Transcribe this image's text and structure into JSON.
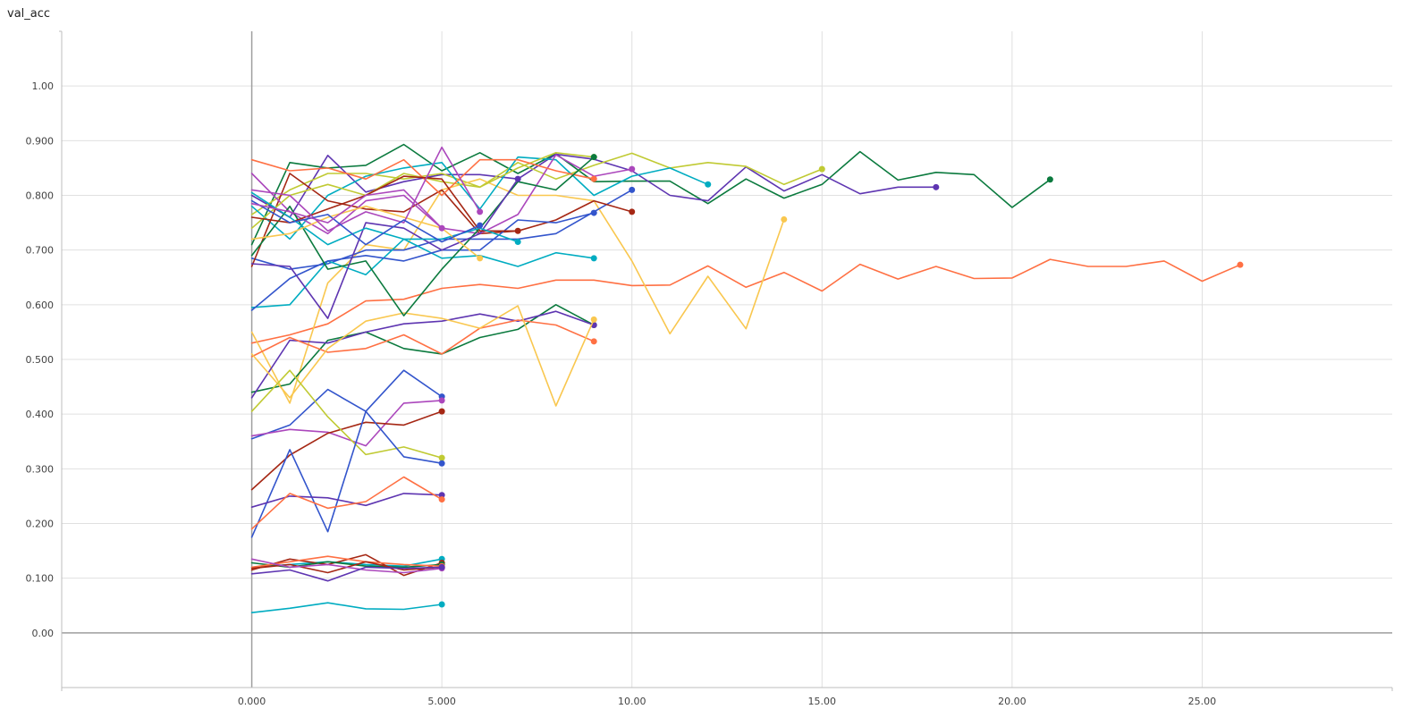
{
  "chart_data": {
    "type": "line",
    "title": "val_acc",
    "xlim": [
      -5,
      30
    ],
    "ylim": [
      -0.1,
      1.1
    ],
    "x_ticks": [
      0,
      5,
      10,
      15,
      20,
      25
    ],
    "x_tick_labels": [
      "0.000",
      "5.000",
      "10.00",
      "15.00",
      "20.00",
      "25.00"
    ],
    "y_ticks": [
      0,
      0.1,
      0.2,
      0.3,
      0.4,
      0.5,
      0.6,
      0.7,
      0.8,
      0.9,
      1.0
    ],
    "y_tick_labels": [
      "0.00",
      "0.100",
      "0.200",
      "0.300",
      "0.400",
      "0.500",
      "0.600",
      "0.700",
      "0.800",
      "0.900",
      "1.00"
    ],
    "grid": true,
    "legend": "none",
    "series": [
      {
        "color": "#0b7a3e",
        "x": [
          0,
          1,
          2,
          3,
          4,
          5,
          6,
          7,
          8,
          9,
          10,
          11,
          12,
          13,
          14,
          15,
          16,
          17,
          18,
          19,
          20,
          21
        ],
        "values": [
          0.71,
          0.86,
          0.85,
          0.855,
          0.893,
          0.845,
          0.878,
          0.84,
          0.876,
          0.825,
          0.826,
          0.826,
          0.785,
          0.83,
          0.795,
          0.82,
          0.88,
          0.828,
          0.842,
          0.838,
          0.778,
          0.829
        ]
      },
      {
        "color": "#5e35b1",
        "x": [
          0,
          1,
          2,
          3,
          4,
          5,
          6,
          7,
          8,
          9,
          10,
          11,
          12,
          13,
          14,
          15,
          16,
          17,
          18
        ],
        "values": [
          0.8,
          0.76,
          0.873,
          0.806,
          0.825,
          0.838,
          0.838,
          0.83,
          0.875,
          0.866,
          0.845,
          0.8,
          0.79,
          0.852,
          0.808,
          0.838,
          0.803,
          0.815,
          0.815
        ]
      },
      {
        "color": "#ff7043",
        "x": [
          0,
          1,
          2,
          3,
          4,
          5,
          6,
          7,
          8,
          9,
          10,
          11,
          12,
          13,
          14,
          15,
          16,
          17,
          18,
          19,
          20,
          21,
          22,
          23,
          24,
          25,
          26
        ],
        "values": [
          0.53,
          0.545,
          0.565,
          0.607,
          0.61,
          0.63,
          0.637,
          0.63,
          0.645,
          0.645,
          0.635,
          0.636,
          0.671,
          0.632,
          0.659,
          0.625,
          0.674,
          0.647,
          0.67,
          0.648,
          0.649,
          0.683,
          0.67,
          0.67,
          0.68,
          0.643,
          0.673
        ]
      },
      {
        "color": "#c0ca33",
        "x": [
          0,
          1,
          2,
          3,
          4,
          5,
          6,
          7,
          8,
          9,
          10,
          11,
          12,
          13,
          14,
          15
        ],
        "values": [
          0.765,
          0.81,
          0.84,
          0.84,
          0.83,
          0.84,
          0.815,
          0.86,
          0.83,
          0.855,
          0.877,
          0.85,
          0.86,
          0.853,
          0.82,
          0.848
        ]
      },
      {
        "color": "#f9c74f",
        "x": [
          0,
          1,
          2,
          3,
          4,
          5,
          6,
          7,
          8,
          9,
          10,
          11,
          12,
          13,
          14
        ],
        "values": [
          0.55,
          0.42,
          0.64,
          0.71,
          0.7,
          0.81,
          0.83,
          0.8,
          0.8,
          0.79,
          0.68,
          0.547,
          0.652,
          0.556,
          0.756
        ]
      },
      {
        "color": "#00acc1",
        "x": [
          0,
          1,
          2,
          3,
          4,
          5,
          6,
          7,
          8,
          9,
          10,
          11,
          12
        ],
        "values": [
          0.78,
          0.72,
          0.8,
          0.835,
          0.85,
          0.86,
          0.775,
          0.87,
          0.865,
          0.8,
          0.835,
          0.85,
          0.82
        ]
      },
      {
        "color": "#3355cc",
        "x": [
          0,
          1,
          2,
          3,
          4,
          5,
          6,
          7,
          8,
          9,
          10
        ],
        "values": [
          0.685,
          0.665,
          0.675,
          0.7,
          0.7,
          0.72,
          0.72,
          0.72,
          0.73,
          0.77,
          0.81
        ]
      },
      {
        "color": "#a52714",
        "x": [
          0,
          1,
          2,
          3,
          4,
          5,
          6,
          7,
          8,
          9,
          10
        ],
        "values": [
          0.67,
          0.84,
          0.79,
          0.775,
          0.77,
          0.81,
          0.73,
          0.735,
          0.755,
          0.79,
          0.77
        ]
      },
      {
        "color": "#ab47bc",
        "x": [
          0,
          1,
          2,
          3,
          4,
          5,
          6,
          7,
          8,
          9,
          10
        ],
        "values": [
          0.84,
          0.77,
          0.73,
          0.79,
          0.8,
          0.74,
          0.73,
          0.765,
          0.874,
          0.835,
          0.848
        ]
      },
      {
        "color": "#0b7a3e",
        "x": [
          0,
          1,
          2,
          3,
          4,
          5,
          6,
          7,
          8,
          9
        ],
        "values": [
          0.44,
          0.455,
          0.535,
          0.55,
          0.52,
          0.51,
          0.54,
          0.555,
          0.6,
          0.563
        ]
      },
      {
        "color": "#5e35b1",
        "x": [
          0,
          1,
          2,
          3,
          4,
          5,
          6,
          7,
          8,
          9
        ],
        "values": [
          0.43,
          0.535,
          0.53,
          0.55,
          0.565,
          0.57,
          0.583,
          0.57,
          0.588,
          0.563
        ]
      },
      {
        "color": "#ff7043",
        "x": [
          0,
          1,
          2,
          3,
          4,
          5,
          6,
          7,
          8,
          9
        ],
        "values": [
          0.505,
          0.54,
          0.513,
          0.52,
          0.545,
          0.51,
          0.557,
          0.572,
          0.563,
          0.533
        ]
      },
      {
        "color": "#f9c74f",
        "x": [
          0,
          1,
          2,
          3,
          4,
          5,
          6,
          7,
          8,
          9
        ],
        "values": [
          0.51,
          0.43,
          0.52,
          0.57,
          0.585,
          0.575,
          0.557,
          0.598,
          0.415,
          0.573
        ]
      },
      {
        "color": "#00acc1",
        "x": [
          0,
          1,
          2,
          3,
          4,
          5,
          6,
          7,
          8,
          9
        ],
        "values": [
          0.595,
          0.6,
          0.68,
          0.655,
          0.72,
          0.685,
          0.69,
          0.67,
          0.695,
          0.685
        ]
      },
      {
        "color": "#c0ca33",
        "x": [
          0,
          1,
          2,
          3,
          4,
          5,
          6,
          7,
          8,
          9
        ],
        "values": [
          0.74,
          0.8,
          0.82,
          0.8,
          0.84,
          0.825,
          0.815,
          0.85,
          0.878,
          0.87
        ]
      },
      {
        "color": "#ff7043",
        "x": [
          0,
          1,
          2,
          3,
          4,
          5,
          6,
          7,
          8,
          9
        ],
        "values": [
          0.865,
          0.845,
          0.85,
          0.83,
          0.865,
          0.8,
          0.865,
          0.865,
          0.845,
          0.83
        ]
      },
      {
        "color": "#3355cc",
        "x": [
          0,
          1,
          2,
          3,
          4,
          5,
          6,
          7,
          8,
          9
        ],
        "values": [
          0.59,
          0.648,
          0.68,
          0.69,
          0.68,
          0.7,
          0.7,
          0.755,
          0.75,
          0.768
        ]
      },
      {
        "color": "#0b7a3e",
        "x": [
          0,
          1,
          2,
          3,
          4,
          5,
          6,
          7,
          8,
          9
        ],
        "values": [
          0.69,
          0.78,
          0.665,
          0.68,
          0.58,
          0.665,
          0.74,
          0.825,
          0.81,
          0.87
        ]
      },
      {
        "color": "#5e35b1",
        "x": [
          0,
          1,
          2,
          3,
          4,
          5,
          6,
          7
        ],
        "values": [
          0.675,
          0.67,
          0.575,
          0.75,
          0.74,
          0.7,
          0.73,
          0.83
        ]
      },
      {
        "color": "#a52714",
        "x": [
          0,
          1,
          2,
          3,
          4,
          5,
          6,
          7
        ],
        "values": [
          0.76,
          0.75,
          0.775,
          0.8,
          0.835,
          0.83,
          0.735,
          0.735
        ]
      },
      {
        "color": "#00acc1",
        "x": [
          0,
          1,
          2,
          3,
          4,
          5,
          6,
          7
        ],
        "values": [
          0.805,
          0.76,
          0.71,
          0.74,
          0.72,
          0.72,
          0.74,
          0.715
        ]
      },
      {
        "color": "#f9c74f",
        "x": [
          0,
          1,
          2,
          3,
          4,
          5,
          6
        ],
        "values": [
          0.72,
          0.73,
          0.76,
          0.78,
          0.76,
          0.74,
          0.685
        ]
      },
      {
        "color": "#ab47bc",
        "x": [
          0,
          1,
          2,
          3,
          4,
          5,
          6
        ],
        "values": [
          0.81,
          0.8,
          0.735,
          0.77,
          0.75,
          0.888,
          0.77
        ]
      },
      {
        "color": "#3355cc",
        "x": [
          0,
          1,
          2,
          3,
          4,
          5,
          6
        ],
        "values": [
          0.79,
          0.75,
          0.765,
          0.71,
          0.755,
          0.715,
          0.745
        ]
      },
      {
        "color": "#ab47bc",
        "x": [
          0,
          1,
          2,
          3,
          4,
          5
        ],
        "values": [
          0.785,
          0.77,
          0.75,
          0.8,
          0.81,
          0.74
        ]
      },
      {
        "color": "#3355cc",
        "x": [
          0,
          1,
          2,
          3,
          4,
          5
        ],
        "values": [
          0.355,
          0.38,
          0.445,
          0.405,
          0.48,
          0.432
        ]
      },
      {
        "color": "#ab47bc",
        "x": [
          0,
          1,
          2,
          3,
          4,
          5
        ],
        "values": [
          0.36,
          0.372,
          0.367,
          0.342,
          0.42,
          0.425
        ]
      },
      {
        "color": "#a52714",
        "x": [
          0,
          1,
          2,
          3,
          4,
          5
        ],
        "values": [
          0.262,
          0.325,
          0.365,
          0.385,
          0.38,
          0.405
        ]
      },
      {
        "color": "#c0ca33",
        "x": [
          0,
          1,
          2,
          3,
          4,
          5
        ],
        "values": [
          0.405,
          0.48,
          0.395,
          0.326,
          0.34,
          0.32
        ]
      },
      {
        "color": "#3355cc",
        "x": [
          0,
          1,
          2,
          3,
          4,
          5
        ],
        "values": [
          0.175,
          0.335,
          0.185,
          0.405,
          0.322,
          0.31
        ]
      },
      {
        "color": "#5e35b1",
        "x": [
          0,
          1,
          2,
          3,
          4,
          5
        ],
        "values": [
          0.23,
          0.25,
          0.247,
          0.233,
          0.255,
          0.252
        ]
      },
      {
        "color": "#ff7043",
        "x": [
          0,
          1,
          2,
          3,
          4,
          5
        ],
        "values": [
          0.19,
          0.255,
          0.228,
          0.24,
          0.285,
          0.244
        ]
      },
      {
        "color": "#00acc1",
        "x": [
          0,
          1,
          2,
          3,
          4,
          5
        ],
        "values": [
          0.12,
          0.125,
          0.13,
          0.125,
          0.122,
          0.135
        ]
      },
      {
        "color": "#a52714",
        "x": [
          0,
          1,
          2,
          3,
          4,
          5
        ],
        "values": [
          0.115,
          0.135,
          0.125,
          0.143,
          0.105,
          0.128
        ]
      },
      {
        "color": "#0b7a3e",
        "x": [
          0,
          1,
          2,
          3,
          4,
          5
        ],
        "values": [
          0.128,
          0.12,
          0.13,
          0.122,
          0.12,
          0.125
        ]
      },
      {
        "color": "#ff7043",
        "x": [
          0,
          1,
          2,
          3,
          4,
          5
        ],
        "values": [
          0.12,
          0.13,
          0.14,
          0.13,
          0.125,
          0.122
        ]
      },
      {
        "color": "#a52714",
        "x": [
          0,
          1,
          2,
          3,
          4,
          5
        ],
        "values": [
          0.118,
          0.125,
          0.11,
          0.13,
          0.115,
          0.12
        ]
      },
      {
        "color": "#ab47bc",
        "x": [
          0,
          1,
          2,
          3,
          4,
          5
        ],
        "values": [
          0.135,
          0.12,
          0.125,
          0.115,
          0.11,
          0.118
        ]
      },
      {
        "color": "#5e35b1",
        "x": [
          0,
          1,
          2,
          3,
          4,
          5
        ],
        "values": [
          0.108,
          0.115,
          0.095,
          0.12,
          0.118,
          0.12
        ]
      },
      {
        "color": "#00acc1",
        "x": [
          0,
          1,
          2,
          3,
          4,
          5
        ],
        "values": [
          0.037,
          0.045,
          0.055,
          0.044,
          0.043,
          0.052
        ]
      }
    ]
  }
}
